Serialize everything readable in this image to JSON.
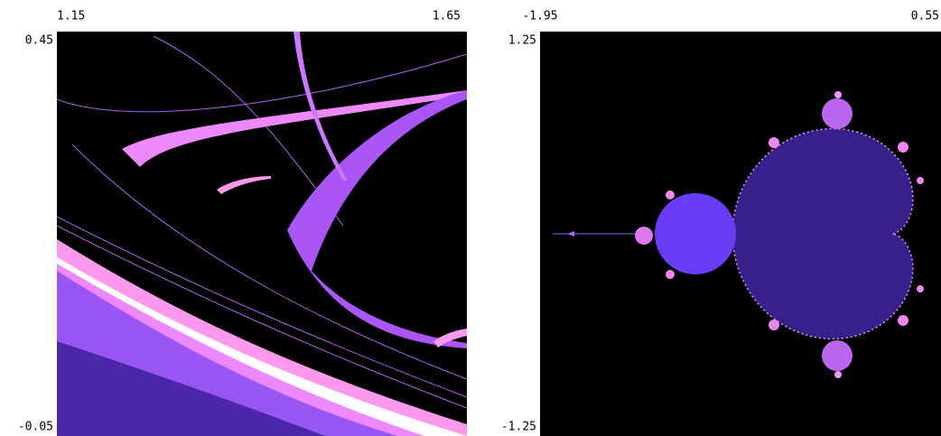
{
  "panels": [
    {
      "x_labels": [
        1.15,
        1.65
      ],
      "y_labels": [
        0.45,
        -0.05
      ]
    },
    {
      "x_labels": [
        -1.95,
        0.55
      ],
      "y_labels": [
        1.25,
        -1.25
      ]
    }
  ]
}
